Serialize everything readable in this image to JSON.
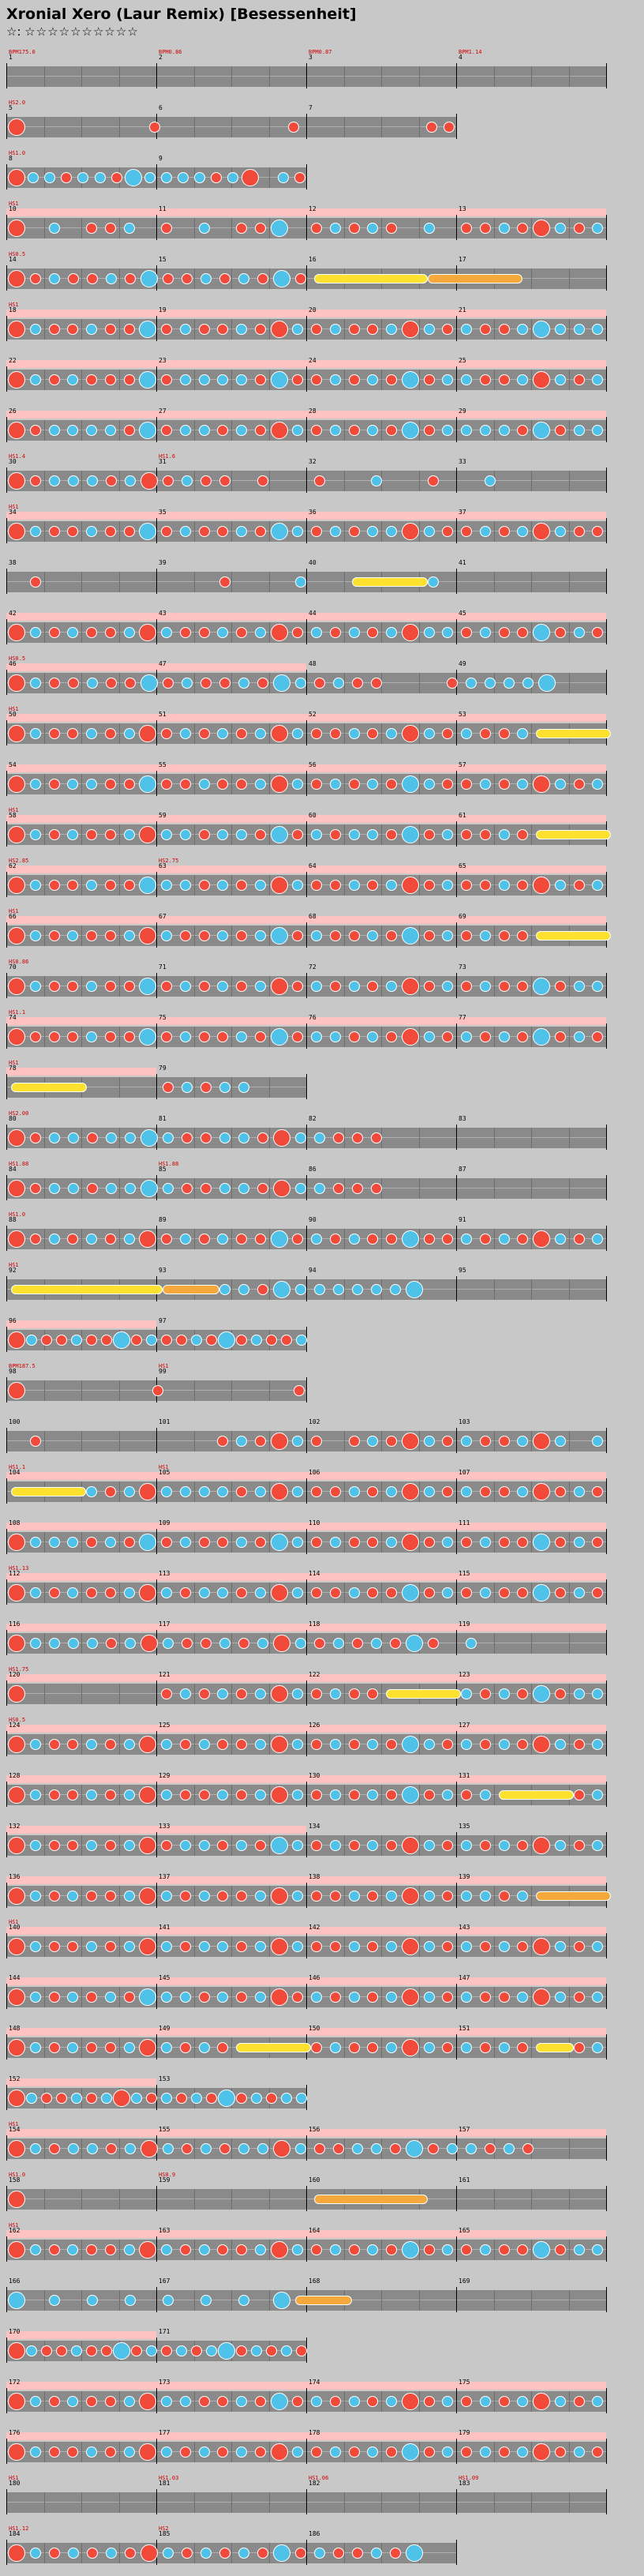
{
  "song": {
    "title": "Xronial Xero (Laur Remix) [Besessenheit]",
    "difficulty_label": "☆:",
    "stars": "☆☆☆☆☆☆☆☆☆☆"
  },
  "colors": {
    "don": "#f24a3a",
    "ka": "#4fc2ea",
    "drumroll": "#fce22e",
    "balloon": "#f5a83b",
    "gogo": "#ffc2c2",
    "lane": "#8a8a8a",
    "background": "#c8c8c8"
  },
  "chart_rows": [
    {
      "measures": [
        1,
        2,
        3,
        4
      ],
      "bpm": [
        "BPM175.0",
        "BPM0.86",
        "BPM0.87",
        "BPM1.14"
      ],
      "notes": "",
      "gogo": ""
    },
    {
      "measures": [
        5,
        6,
        7
      ],
      "bpm": [
        "HS2.0"
      ],
      "notes": "D.......D.......D.......DD",
      "gogo": ""
    },
    {
      "measures": [
        8,
        9
      ],
      "bpm": [
        "HS1.0"
      ],
      "notes": "DKKDKKDKKKKKDKD.KD",
      "gogo": ""
    },
    {
      "measures": [
        10,
        11,
        12,
        13
      ],
      "bpm": [
        "HS1"
      ],
      "notes": "D.K.DDK.D.K.DDK.DKDKD.K.DDKDDKDK",
      "gogo": "full"
    },
    {
      "measures": [
        14,
        15,
        16,
        17
      ],
      "bpm": [
        "HS0.5"
      ],
      "notes": "DDKDDKDKDDKDKDKDRRRRRRBBBBB",
      "gogo": ""
    },
    {
      "measures": [
        18,
        19,
        20,
        21
      ],
      "bpm": [
        "HS1"
      ],
      "notes": "DKDDKDDKDKDDKDDKDKDDKDKDKDDKKKKK",
      "gogo": "full"
    },
    {
      "measures": [
        22,
        23,
        24,
        25
      ],
      "bpm": [],
      "notes": "DKDKDDDKDKKKKDKDDKDKDKDKKDDKDKDK",
      "gogo": "full"
    },
    {
      "measures": [
        26,
        27,
        28,
        29
      ],
      "bpm": [],
      "notes": "DDKKKKDKDKKDKDDKDKDKDKDKKKKDKDKK",
      "gogo": "full"
    },
    {
      "measures": [
        30,
        31,
        32,
        33
      ],
      "bpm": [
        "HS1.4",
        "HS1.6"
      ],
      "notes": "DDKKKDKDDKDD.D..D..K..D..K",
      "gogo": ""
    },
    {
      "measures": [
        34,
        35,
        36,
        37
      ],
      "bpm": [
        "HS1"
      ],
      "notes": "DKDDKDDKDKDDKDKKDKDKKDKDDKDKDKDD",
      "gogo": "full"
    },
    {
      "measures": [
        38,
        39,
        40,
        41
      ],
      "bpm": [],
      "notes": ".D.........D...K..RRRRK",
      "gogo": ""
    },
    {
      "measures": [
        42,
        43,
        44,
        45
      ],
      "bpm": [],
      "notes": "DKDKDDKDKDDKDKDDKDKDKDKKDKDDKDKD",
      "gogo": "full"
    },
    {
      "measures": [
        46,
        47,
        48,
        49
      ],
      "bpm": [
        "HS0.5"
      ],
      "notes": "DKDDKDDKDKDDKDKKDKDD...DKKKKK",
      "gogo": "half"
    },
    {
      "measures": [
        50,
        51,
        52,
        53
      ],
      "bpm": [
        "HS1"
      ],
      "notes": "DKDDKDKDDKDKDKDKDDKDKDKDKDDKRRRR",
      "gogo": "full"
    },
    {
      "measures": [
        54,
        55,
        56,
        57
      ],
      "bpm": [],
      "notes": "DKDKKDDKDDKDDKDKDKDKDKKDDKDKDKDK",
      "gogo": "full"
    },
    {
      "measures": [
        58,
        59,
        60,
        61
      ],
      "bpm": [
        "HS1"
      ],
      "notes": "DKDKDDKDKKDKKDKDKDKKDKDKDDKDRRRR",
      "gogo": "full"
    },
    {
      "measures": [
        62,
        63,
        64,
        65
      ],
      "bpm": [
        "HS2.85",
        "HS2.75"
      ],
      "notes": "DKDDKDDKKKDKDKDKDDKDKDDKDDKDDKDK",
      "gogo": "full"
    },
    {
      "measures": [
        66,
        67,
        68,
        69
      ],
      "bpm": [
        "HS1"
      ],
      "notes": "DKDKDDKDKDDKDKKDKDDKDKDKDKDDRRRR",
      "gogo": "full"
    },
    {
      "measures": [
        70,
        71,
        72,
        73
      ],
      "bpm": [
        "HS0.86"
      ],
      "notes": "DKDDKDDKDKDKDKDDKDKDKDDKDKDDKDKK",
      "gogo": ""
    },
    {
      "measures": [
        74,
        75,
        76,
        77
      ],
      "bpm": [
        "HS1.1"
      ],
      "notes": "DDDDKDDKDKDDKDKDKKDKDDKDKDKDKDKD",
      "gogo": "full"
    },
    {
      "measures": [
        78,
        79
      ],
      "bpm": [
        "HS1"
      ],
      "notes": "RRRR....DKDKK",
      "gogo": "half"
    },
    {
      "measures": [
        80,
        81,
        82,
        83
      ],
      "bpm": [
        "HS2.00"
      ],
      "notes": "DDKKDKKKKDDKKDDKKDDD",
      "gogo": ""
    },
    {
      "measures": [
        84,
        85,
        86,
        87
      ],
      "bpm": [
        "HS1.88",
        "HS1.88"
      ],
      "notes": "DDKKDKKKKDDKKDDKKDDD",
      "gogo": ""
    },
    {
      "measures": [
        88,
        89,
        90,
        91
      ],
      "bpm": [
        "HS1.0"
      ],
      "notes": "DDKDKDKDDKDKDDKDKDKDDKDDKDKDDKDK",
      "gogo": ""
    },
    {
      "measures": [
        92,
        93,
        94,
        95
      ],
      "bpm": [
        "HS1"
      ],
      "notes": "RRRRRRRRBBBKKDKKKKKKKK",
      "gogo": ""
    },
    {
      "measures": [
        96,
        97
      ],
      "bpm": [],
      "notes": "DKDDKDDKDKDDKDKDKDDK",
      "gogo": "half"
    },
    {
      "measures": [
        98,
        99
      ],
      "bpm": [
        "BPM187.5",
        "HS1"
      ],
      "notes": "D.......D.......D",
      "gogo": ""
    },
    {
      "measures": [
        100,
        101,
        102,
        103
      ],
      "bpm": [],
      "notes": ".D.........DKDDKD.DKDDKDKDDKDK.K",
      "gogo": ""
    },
    {
      "measures": [
        104,
        105,
        106,
        107
      ],
      "bpm": [
        "HS1.1",
        "HS1"
      ],
      "notes": "RRRRKDKDKKKKDKDKDDKDKDKDKDDKDDKD",
      "gogo": "full"
    },
    {
      "measures": [
        108,
        109,
        110,
        111
      ],
      "bpm": [],
      "notes": "DKKKDKDKDKDDKDKKDKDDKDDKDKDDKDKD",
      "gogo": "full"
    },
    {
      "measures": [
        112,
        113,
        114,
        115
      ],
      "bpm": [
        "HS1.13"
      ],
      "notes": "DKDKDDKDKDKKDKDKDDKDDKDKDKDDKDKD",
      "gogo": "full"
    },
    {
      "measures": [
        116,
        117,
        118,
        119
      ],
      "bpm": [],
      "notes": "DKKKKDKDKDDKDKDKDKDKDKD.K",
      "gogo": "full"
    },
    {
      "measures": [
        120,
        121,
        122,
        123
      ],
      "bpm": [
        "HS1.75"
      ],
      "notes": "D.......DKDKDKDKDKDDRRRRKDKDKDKK",
      "gogo": "full"
    },
    {
      "measures": [
        124,
        125,
        126,
        127
      ],
      "bpm": [
        "HS0.5"
      ],
      "notes": "DKDDKDKDKDKDDKDKDKDKDKKDKDKDDKDK",
      "gogo": "full"
    },
    {
      "measures": [
        128,
        129,
        130,
        131
      ],
      "bpm": [],
      "notes": "DKDDKDKDKDDKDKDKDKDKDKDKDKRRRRDK",
      "gogo": "full"
    },
    {
      "measures": [
        132,
        133,
        134,
        135
      ],
      "bpm": [],
      "notes": "DKDDKDKDDKKDKDKKDKDKDDKDKDKDDKDK",
      "gogo": "half"
    },
    {
      "measures": [
        136,
        137,
        138,
        139
      ],
      "bpm": [],
      "notes": "DKDKDDKDKDKDDKDKDDKDKDKDKKDKBBBB",
      "gogo": "full"
    },
    {
      "measures": [
        140,
        141,
        142,
        143
      ],
      "bpm": [
        "HS1"
      ],
      "notes": "DKDDKDKDKDKKDKDKDDKDKDKDKDKDDKDK",
      "gogo": "full"
    },
    {
      "measures": [
        144,
        145,
        146,
        147
      ],
      "bpm": [],
      "notes": "DKDKDKDKKKDKDKDDKDKDKDKDKDDKDKDK",
      "gogo": "full"
    },
    {
      "measures": [
        148,
        149,
        150,
        151
      ],
      "bpm": [],
      "notes": "DKDKDDKDKDKDRRRRDKDDKDKDKDKDRRDK",
      "gogo": "full"
    },
    {
      "measures": [
        152,
        153
      ],
      "bpm": [],
      "notes": "DKDDKDKDKDKDKDKDKDKK",
      "gogo": "half"
    },
    {
      "measures": [
        154,
        155,
        156,
        157
      ],
      "bpm": [
        "HS1"
      ],
      "notes": "DKDKKDKDKDKDKKDKDDKKDKDKKDKD",
      "gogo": "full"
    },
    {
      "measures": [
        158,
        159,
        160,
        161
      ],
      "bpm": [
        "HS1.0",
        "HS0.9"
      ],
      "notes": "D...............BBBBBB",
      "gogo": ""
    },
    {
      "measures": [
        162,
        163,
        164,
        165
      ],
      "bpm": [
        "HS1"
      ],
      "notes": "DKDKDDKDKDKDDKDKDKDKDKDKDKDDKDKK",
      "gogo": "full"
    },
    {
      "measures": [
        166,
        167,
        168,
        169
      ],
      "bpm": [],
      "notes": "K.K.K.K.K.K.K.KBBB",
      "gogo": ""
    },
    {
      "measures": [
        170,
        171
      ],
      "bpm": [],
      "notes": "DKDDKDDKDKDKDKKDKDKD",
      "gogo": "half"
    },
    {
      "measures": [
        172,
        173,
        174,
        175
      ],
      "bpm": [],
      "notes": "DKDKDDKDKKDDKDKDKDKDKDDKDKDKDKDK",
      "gogo": "full"
    },
    {
      "measures": [
        176,
        177,
        178,
        179
      ],
      "bpm": [],
      "notes": "DKDDKDKDKDKDKDDKDKDKDKDKDKDKDDKD",
      "gogo": "full"
    },
    {
      "measures": [
        180,
        181,
        182,
        183
      ],
      "bpm": [
        "HS1",
        "HS1.03",
        "HS1.06",
        "HS1.09"
      ],
      "notes": "",
      "gogo": ""
    },
    {
      "measures": [
        184,
        185,
        186
      ],
      "bpm": [
        "HS1.12",
        "HS2"
      ],
      "notes": "DKDKDKDDKDKDKDKDKDDKDK",
      "gogo": ""
    }
  ]
}
